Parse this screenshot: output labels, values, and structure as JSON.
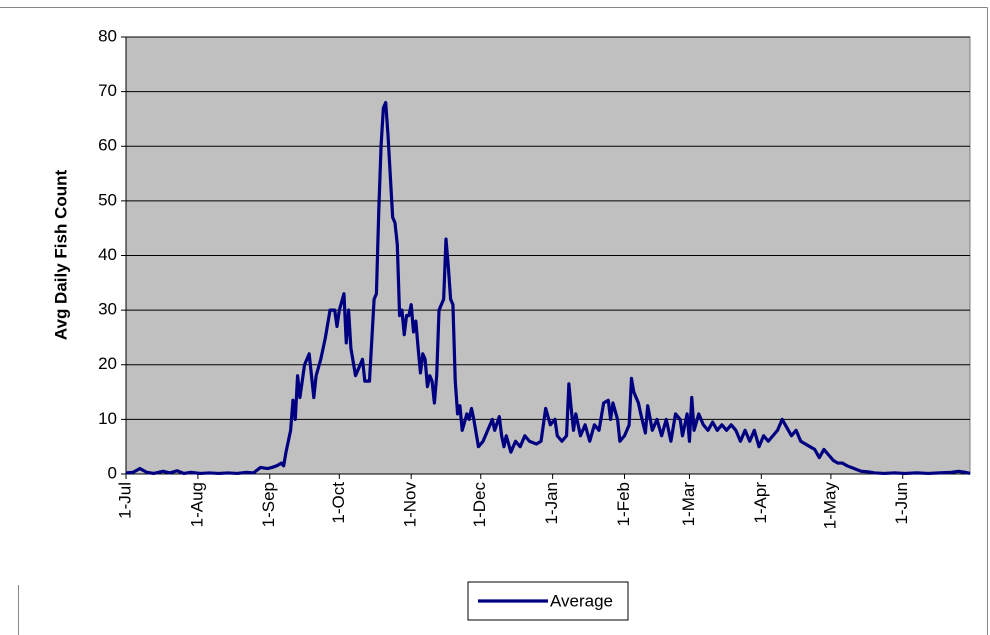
{
  "chart_data": {
    "type": "line",
    "y_label": "Avg Daily Fish Count",
    "x": [
      "1-Jul",
      "4-Jul",
      "7-Jul",
      "10-Jul",
      "13-Jul",
      "17-Jul",
      "20-Jul",
      "23-Jul",
      "26-Jul",
      "29-Jul",
      "2-Aug",
      "6-Aug",
      "10-Aug",
      "14-Aug",
      "18-Aug",
      "22-Aug",
      "25-Aug",
      "28-Aug",
      "31-Aug",
      "2-Sep",
      "4-Sep",
      "6-Sep",
      "7-Sep",
      "8-Sep",
      "10-Sep",
      "11-Sep",
      "12-Sep",
      "13-Sep",
      "14-Sep",
      "16-Sep",
      "18-Sep",
      "20-Sep",
      "21-Sep",
      "23-Sep",
      "25-Sep",
      "27-Sep",
      "29-Sep",
      "30-Sep",
      "1-Oct",
      "3-Oct",
      "4-Oct",
      "5-Oct",
      "6-Oct",
      "8-Oct",
      "10-Oct",
      "11-Oct",
      "12-Oct",
      "14-Oct",
      "16-Oct",
      "17-Oct",
      "18-Oct",
      "19-Oct",
      "20-Oct",
      "21-Oct",
      "22-Oct",
      "24-Oct",
      "25-Oct",
      "26-Oct",
      "27-Oct",
      "28-Oct",
      "29-Oct",
      "30-Oct",
      "31-Oct",
      "1-Nov",
      "2-Nov",
      "3-Nov",
      "4-Nov",
      "5-Nov",
      "6-Nov",
      "7-Nov",
      "8-Nov",
      "9-Nov",
      "10-Nov",
      "11-Nov",
      "12-Nov",
      "13-Nov",
      "15-Nov",
      "16-Nov",
      "17-Nov",
      "18-Nov",
      "19-Nov",
      "20-Nov",
      "21-Nov",
      "22-Nov",
      "23-Nov",
      "25-Nov",
      "26-Nov",
      "27-Nov",
      "28-Nov",
      "30-Nov",
      "2-Dec",
      "4-Dec",
      "6-Dec",
      "7-Dec",
      "9-Dec",
      "10-Dec",
      "11-Dec",
      "12-Dec",
      "14-Dec",
      "16-Dec",
      "18-Dec",
      "20-Dec",
      "22-Dec",
      "25-Dec",
      "27-Dec",
      "29-Dec",
      "31-Dec",
      "2-Jan",
      "3-Jan",
      "5-Jan",
      "7-Jan",
      "8-Jan",
      "9-Jan",
      "10-Jan",
      "11-Jan",
      "13-Jan",
      "15-Jan",
      "17-Jan",
      "19-Jan",
      "21-Jan",
      "23-Jan",
      "25-Jan",
      "26-Jan",
      "27-Jan",
      "29-Jan",
      "30-Jan",
      "1-Feb",
      "3-Feb",
      "4-Feb",
      "5-Feb",
      "7-Feb",
      "8-Feb",
      "10-Feb",
      "11-Feb",
      "13-Feb",
      "15-Feb",
      "17-Feb",
      "19-Feb",
      "21-Feb",
      "23-Feb",
      "25-Feb",
      "26-Feb",
      "28-Feb",
      "1-Mar",
      "2-Mar",
      "3-Mar",
      "5-Mar",
      "7-Mar",
      "9-Mar",
      "11-Mar",
      "13-Mar",
      "15-Mar",
      "17-Mar",
      "19-Mar",
      "21-Mar",
      "23-Mar",
      "25-Mar",
      "27-Mar",
      "29-Mar",
      "31-Mar",
      "2-Apr",
      "4-Apr",
      "6-Apr",
      "8-Apr",
      "10-Apr",
      "12-Apr",
      "14-Apr",
      "16-Apr",
      "18-Apr",
      "20-Apr",
      "22-Apr",
      "24-Apr",
      "26-Apr",
      "28-Apr",
      "30-Apr",
      "2-May",
      "4-May",
      "6-May",
      "8-May",
      "11-May",
      "14-May",
      "17-May",
      "20-May",
      "24-May",
      "28-May",
      "2-Jun",
      "7-Jun",
      "12-Jun",
      "17-Jun",
      "22-Jun",
      "25-Jun",
      "28-Jun",
      "30-Jun"
    ],
    "series": [
      {
        "name": "Average",
        "color": "#000080",
        "values": [
          0.2,
          0.3,
          1,
          0.3,
          0.1,
          0.5,
          0.2,
          0.6,
          0.1,
          0.3,
          0.1,
          0.2,
          0.1,
          0.2,
          0.1,
          0.3,
          0.2,
          1.2,
          1,
          1.2,
          1.5,
          2,
          1.5,
          4,
          8,
          13.5,
          10,
          18,
          14,
          20,
          22,
          14,
          18,
          21,
          25,
          30,
          30,
          27,
          30,
          33,
          24,
          30,
          23,
          18,
          20,
          21,
          17,
          17,
          32,
          33,
          48,
          60,
          67,
          68,
          62,
          47,
          46,
          42,
          29,
          30,
          25.5,
          29,
          29,
          31,
          26,
          28,
          23,
          18.5,
          22,
          21,
          16,
          18,
          17,
          13,
          18,
          30,
          32,
          43,
          38,
          32,
          31,
          17,
          11,
          12.5,
          8,
          11,
          10,
          12,
          10,
          5,
          6,
          8,
          10,
          8,
          10.5,
          7,
          5,
          7,
          4,
          6,
          5,
          7,
          6,
          5.5,
          6,
          12,
          9,
          10,
          7,
          6,
          7,
          16.5,
          12,
          8,
          11,
          7,
          9,
          6,
          9,
          8,
          13,
          13.5,
          10,
          13,
          10,
          6,
          7,
          9,
          17.5,
          15,
          13,
          11,
          7.5,
          12.5,
          8,
          10,
          7,
          10,
          6,
          11,
          10,
          7,
          11,
          6,
          14,
          8,
          11,
          9,
          8,
          9.5,
          8,
          9,
          8,
          9,
          8,
          6,
          8,
          6,
          8,
          5,
          7,
          6,
          7,
          8,
          10,
          8.5,
          7,
          8,
          6,
          5.5,
          5,
          4.5,
          3,
          4.5,
          3.5,
          2.5,
          2,
          2,
          1.5,
          1,
          0.5,
          0.4,
          0.2,
          0.1,
          0.2,
          0.1,
          0.2,
          0.1,
          0.2,
          0.3,
          0.5,
          0.3,
          0.1
        ]
      }
    ],
    "xlim": [
      "1-Jul",
      "30-Jun"
    ],
    "xticks": [
      "1-Jul",
      "1-Aug",
      "1-Sep",
      "1-Oct",
      "1-Nov",
      "1-Dec",
      "1-Jan",
      "1-Feb",
      "1-Mar",
      "1-Apr",
      "1-May",
      "1-Jun"
    ],
    "ylim": [
      0,
      80
    ],
    "yticks": [
      0,
      10,
      20,
      30,
      40,
      50,
      60,
      70,
      80
    ],
    "grid": true,
    "legend": "bottom"
  }
}
